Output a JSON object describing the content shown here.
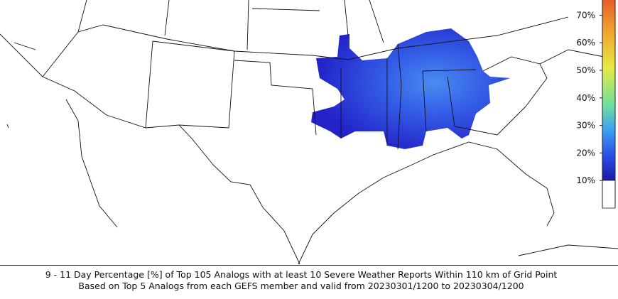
{
  "colorbar": {
    "ticks": [
      {
        "value": 10,
        "label": "10%"
      },
      {
        "value": 20,
        "label": "20%"
      },
      {
        "value": 30,
        "label": "30%"
      },
      {
        "value": 40,
        "label": "40%"
      },
      {
        "value": 50,
        "label": "50%"
      },
      {
        "value": 60,
        "label": "60%"
      },
      {
        "value": 70,
        "label": "70%"
      }
    ]
  },
  "caption": {
    "line1": "9 - 11 Day Percentage [%] of Top 105 Analogs with at least 10 Severe Weather Reports Within 110 km of Grid Point",
    "line2": "Based on Top 5 Analogs from each GEFS member and valid from 20230301/1200 to 20230304/1200"
  }
}
